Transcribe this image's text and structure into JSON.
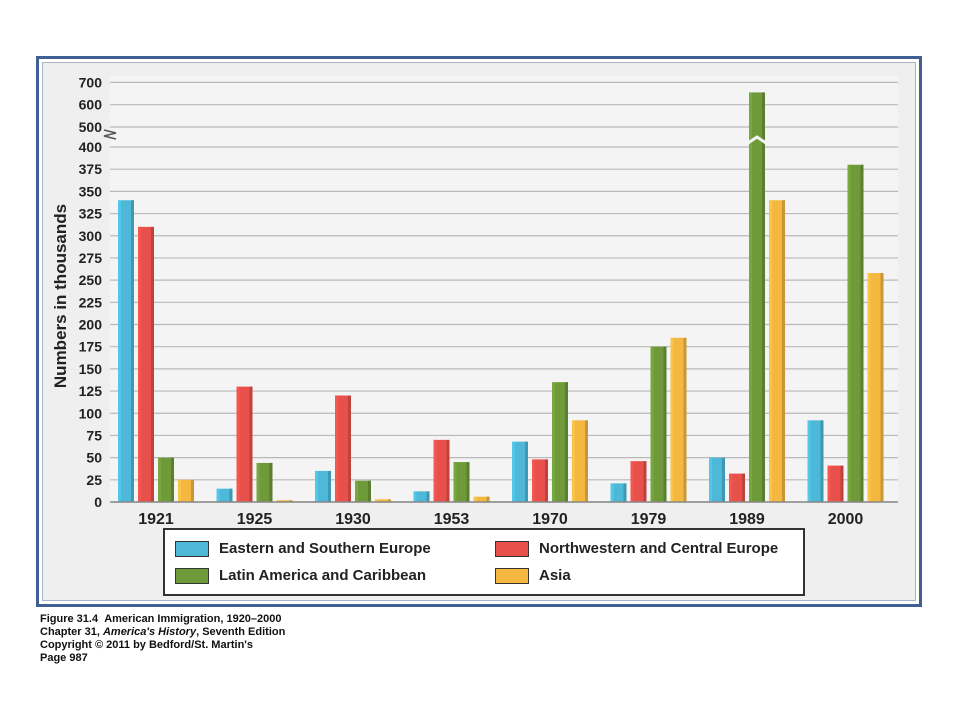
{
  "chart_data": {
    "type": "bar",
    "ylabel": "Numbers in thousands",
    "categories": [
      "1921",
      "1925",
      "1930",
      "1953",
      "1970",
      "1979",
      "1989",
      "2000"
    ],
    "series": [
      {
        "name": "Eastern and Southern Europe",
        "color": "#4db8d8",
        "values": [
          340,
          15,
          35,
          12,
          68,
          21,
          50,
          92
        ]
      },
      {
        "name": "Northwestern and Central Europe",
        "color": "#e8504b",
        "values": [
          310,
          130,
          120,
          70,
          48,
          46,
          32,
          41
        ]
      },
      {
        "name": "Latin America and Caribbean",
        "color": "#6f9a3a",
        "values": [
          50,
          44,
          24,
          45,
          135,
          175,
          655,
          380
        ]
      },
      {
        "name": "Asia",
        "color": "#f4b740",
        "values": [
          25,
          2,
          3,
          6,
          92,
          185,
          340,
          258
        ]
      }
    ],
    "yticks": [
      "0",
      "25",
      "50",
      "75",
      "100",
      "125",
      "150",
      "175",
      "200",
      "225",
      "250",
      "275",
      "300",
      "325",
      "350",
      "375",
      "400",
      "500",
      "600",
      "700"
    ],
    "ylim": [
      0,
      700
    ],
    "axis_break": "between 400 and 500",
    "grid": true,
    "legend_position": "bottom"
  },
  "caption": {
    "figure_label": "Figure 31.4",
    "figure_title": "American Immigration, 1920–2000",
    "chapter_prefix": "Chapter 31, ",
    "book_title": "America's History",
    "edition": ", Seventh Edition",
    "copyright": "Copyright © 2011 by Bedford/St. Martin's",
    "page": "Page 987"
  }
}
